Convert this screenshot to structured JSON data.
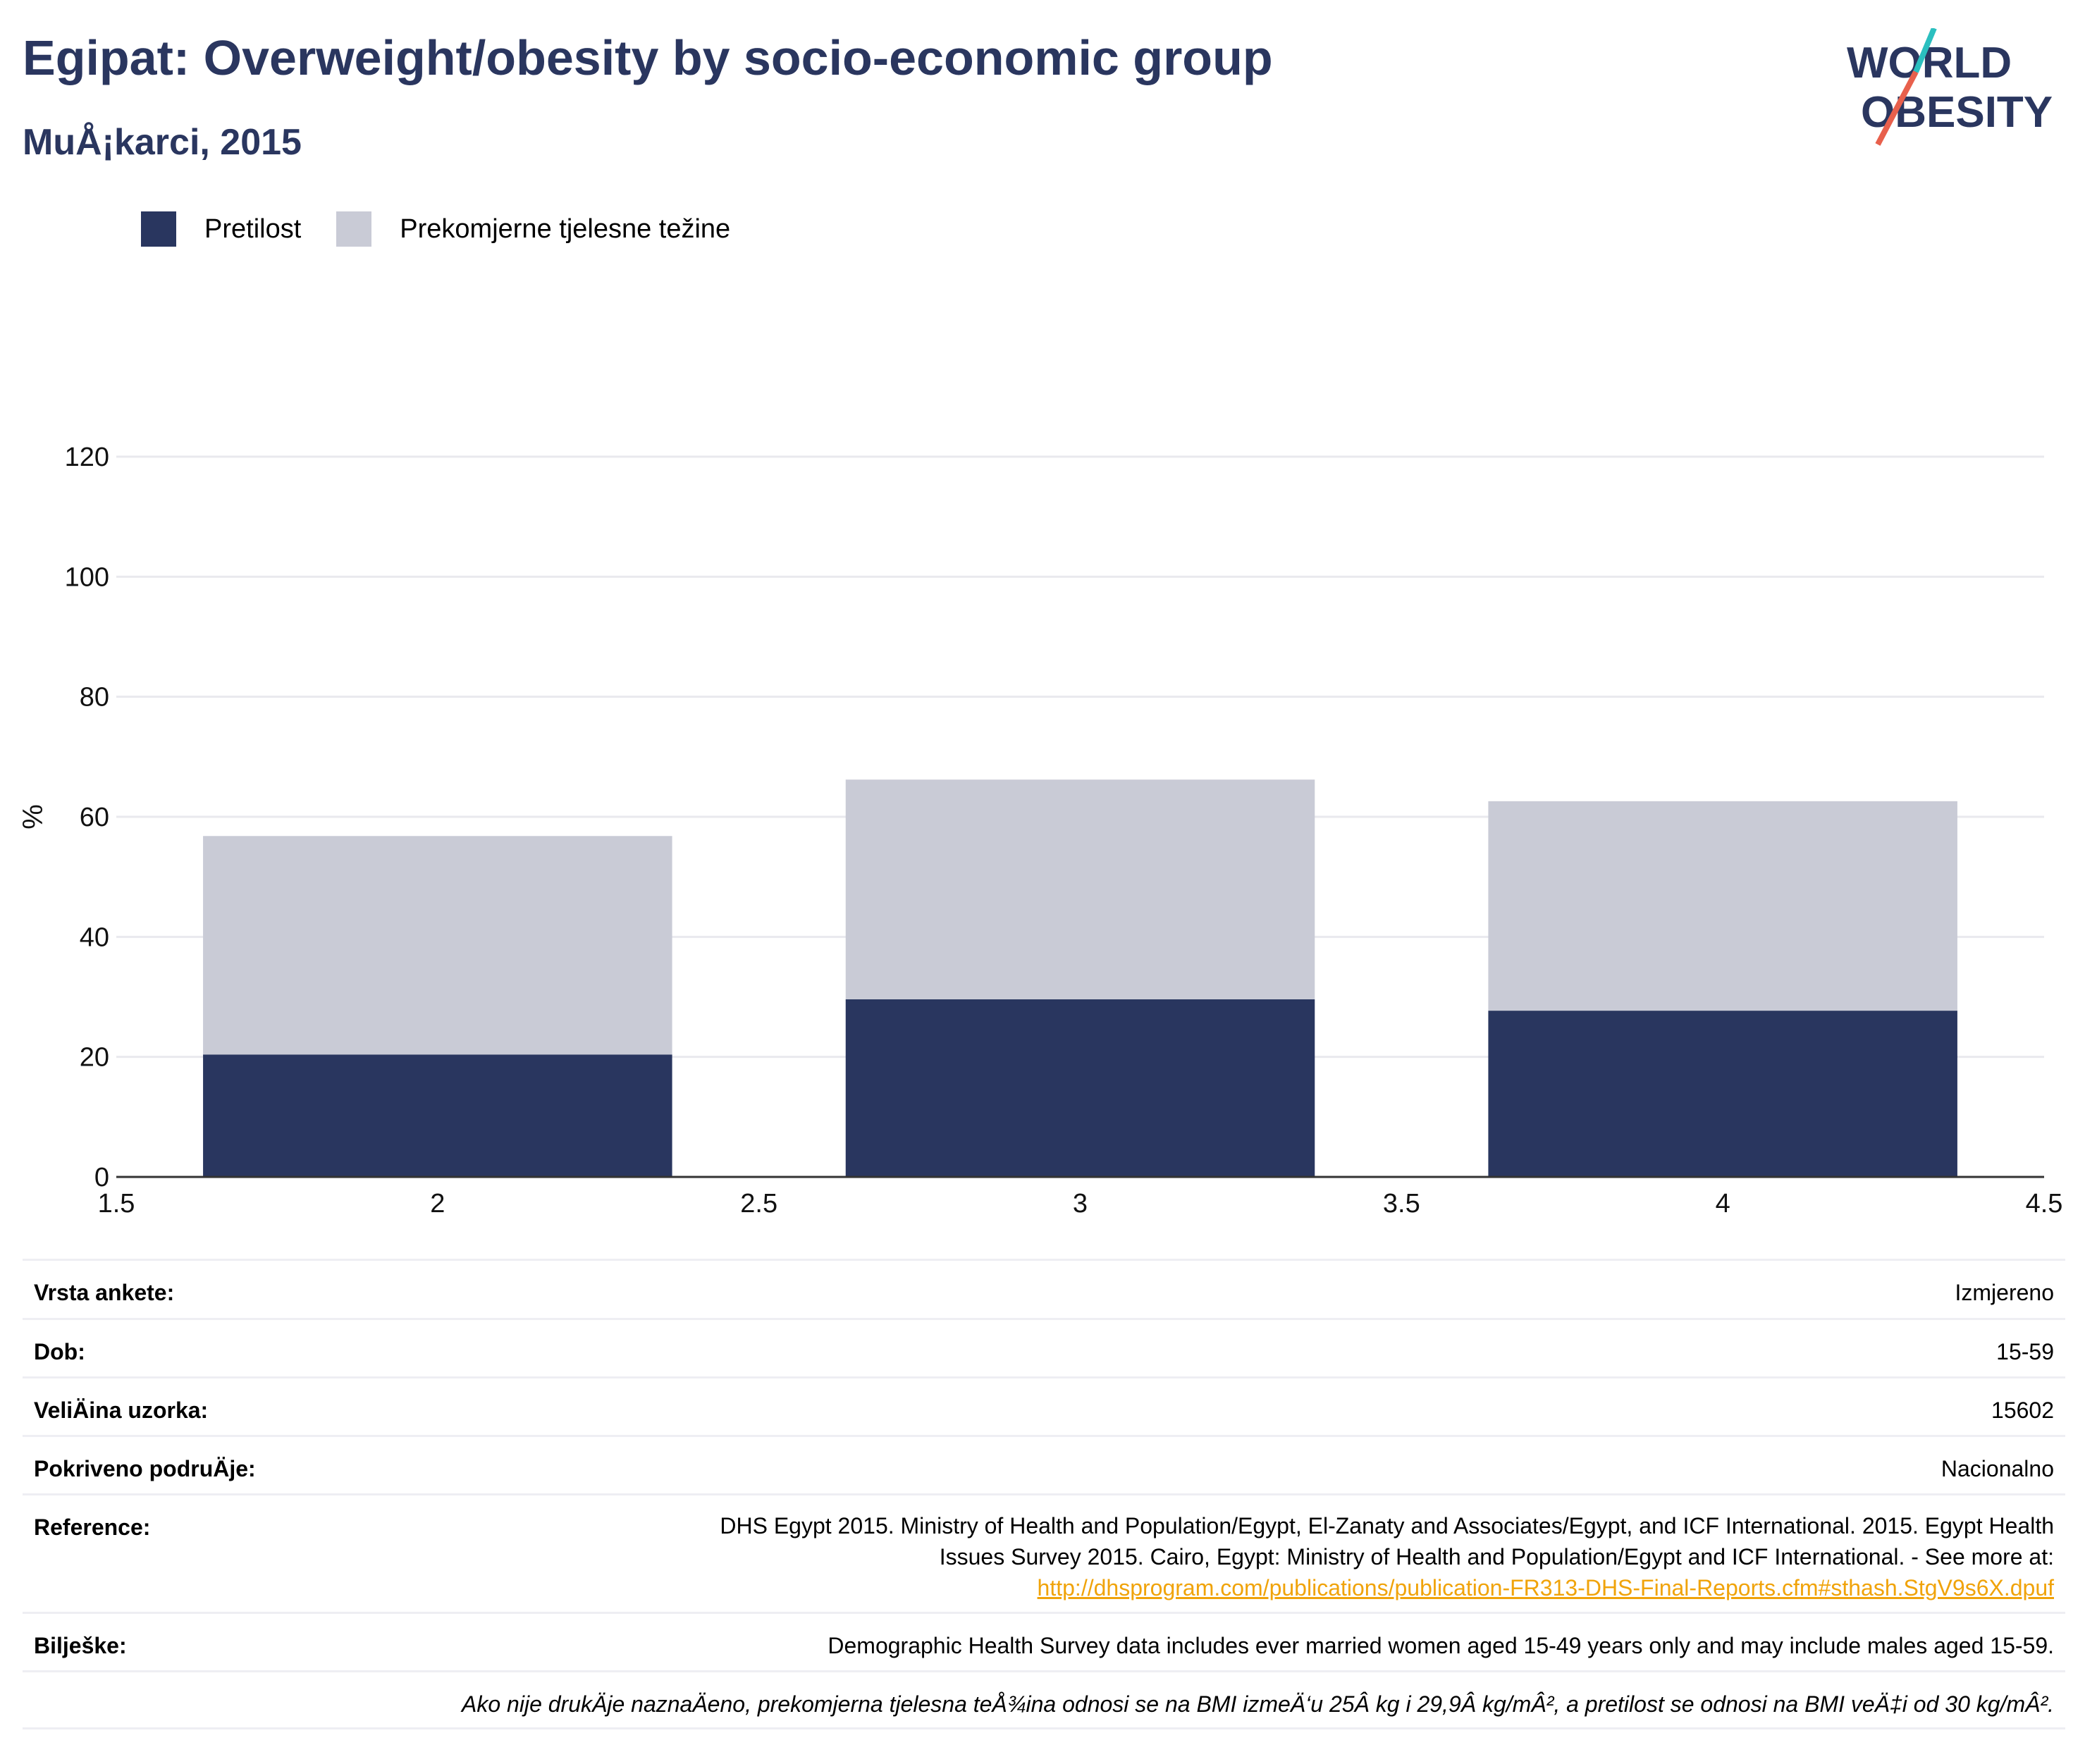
{
  "header": {
    "title": "Egipat: Overweight/obesity by socio-economic group",
    "subtitle": "MuÅ¡karci, 2015"
  },
  "logo": {
    "line1": "WORLD",
    "line2": "OBESITY",
    "color_dark": "#2a365f",
    "color_teal": "#2bbfbf",
    "color_red": "#e8604c"
  },
  "legend": [
    {
      "label": "Pretilost",
      "color": "#29365f"
    },
    {
      "label": "Prekomjerne tjelesne težine",
      "color": "#c9cbd6"
    }
  ],
  "chart_data": {
    "type": "bar",
    "stacked": true,
    "x": [
      2,
      3,
      4
    ],
    "series": [
      {
        "name": "Pretilost",
        "values": [
          20.4,
          29.6,
          27.7
        ],
        "color": "#29365f"
      },
      {
        "name": "Prekomjerne tjelesne težine",
        "values": [
          36.4,
          36.6,
          34.9
        ],
        "color": "#c9cbd6"
      }
    ],
    "ylabel": "%",
    "xlim": [
      1.5,
      4.5
    ],
    "ylim": [
      0,
      120
    ],
    "xticks": [
      "1.5",
      "2",
      "2.5",
      "3",
      "3.5",
      "4",
      "4.5"
    ],
    "yticks": [
      "0",
      "20",
      "40",
      "60",
      "80",
      "100",
      "120"
    ],
    "grid": true,
    "legend_position": "top-left"
  },
  "meta": {
    "survey_type": {
      "label": "Vrsta ankete:",
      "value": "Izmjereno"
    },
    "age": {
      "label": "Dob:",
      "value": "15-59"
    },
    "sample_size": {
      "label": "VeliÄ\u001fina uzorka:",
      "value": "15602"
    },
    "coverage": {
      "label": "Pokriveno podruÄ\u001fje:",
      "value": "Nacionalno"
    },
    "references": {
      "label": "Reference:",
      "text_line1": "DHS Egypt 2015. Ministry of Health and Population/Egypt, El-Zanaty and Associates/Egypt, and ICF International. 2015. Egypt Health",
      "text_line2": "Issues Survey 2015. Cairo, Egypt: Ministry of Health and Population/Egypt and ICF International. - See more at:",
      "link": "http://dhsprogram.com/publications/publication-FR313-DHS-Final-Reports.cfm#sthash.StgV9s6X.dpuf"
    },
    "notes": {
      "label": "Bilješke:",
      "value": "Demographic Health Survey data includes ever married women aged 15-49 years only and may include males aged 15-59."
    },
    "definition": "Ako nije drukÄ\u001fje naznaÄ\u001feno, prekomjerna tjelesna teÅ¾ina odnosi se na BMI izmeÄ‘u 25Â kg i 29,9Â kg/mÂ², a pretilost se odnosi na BMI veÄ‡i od 30 kg/mÂ²."
  }
}
